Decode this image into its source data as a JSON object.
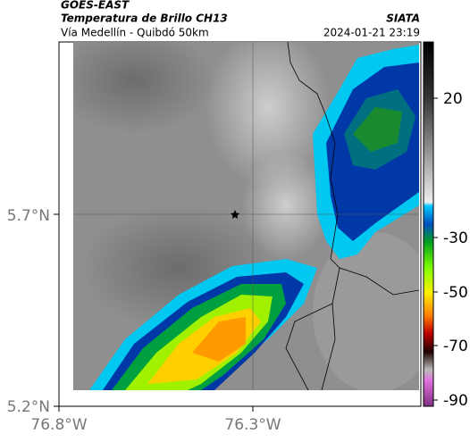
{
  "header": {
    "title": "GOES-EAST",
    "subtitle": "Temperatura de Brillo CH13",
    "region": "Vía Medellín - Quibdó 50km",
    "source": "SIATA",
    "timestamp": "2024-01-21 23:19"
  },
  "axes": {
    "latitude_labels": [
      "5.7°N",
      "5.2°N"
    ],
    "longitude_labels": [
      "76.8°W",
      "76.3°W"
    ]
  },
  "colorbar": {
    "ticks": [
      20,
      -30,
      -50,
      -70,
      -90
    ]
  }
}
